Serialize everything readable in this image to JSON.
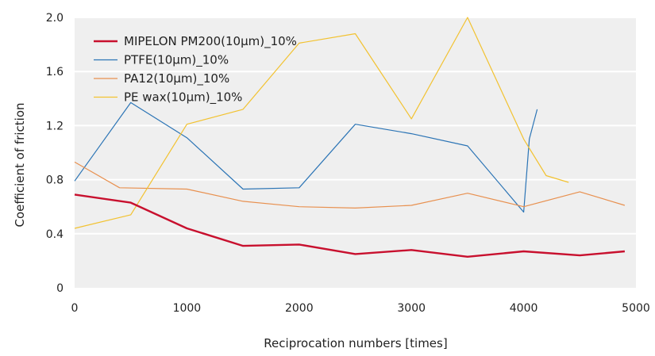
{
  "chart_data": {
    "type": "line",
    "title": "",
    "xlabel": "Reciprocation numbers [times]",
    "ylabel": "Coefficient of friction",
    "xlim": [
      0,
      5000
    ],
    "ylim": [
      0,
      2.0
    ],
    "xticks": [
      0,
      1000,
      2000,
      3000,
      4000,
      5000
    ],
    "xtick_labels": [
      "0",
      "1000",
      "2000",
      "3000",
      "4000",
      "5000"
    ],
    "yticks": [
      0,
      0.4,
      0.8,
      1.2,
      1.6,
      2.0
    ],
    "ytick_labels": [
      "0",
      "0.4",
      "0.8",
      "1.2",
      "1.6",
      "2.0"
    ],
    "grid": "horizontal",
    "legend_position": "top-left",
    "series": [
      {
        "name": "MIPELON PM200(10µm)_10%",
        "color": "#c8102e",
        "emphasis": true,
        "x": [
          0,
          500,
          1000,
          1500,
          2000,
          2500,
          3000,
          3500,
          4000,
          4500,
          4900
        ],
        "y": [
          0.69,
          0.63,
          0.44,
          0.31,
          0.32,
          0.25,
          0.28,
          0.23,
          0.27,
          0.24,
          0.27
        ]
      },
      {
        "name": "PTFE(10µm)_10%",
        "color": "#2b74b5",
        "emphasis": false,
        "x": [
          0,
          500,
          1000,
          1500,
          2000,
          2500,
          3000,
          3500,
          4000,
          4050,
          4120
        ],
        "y": [
          0.79,
          1.37,
          1.11,
          0.73,
          0.74,
          1.21,
          1.14,
          1.05,
          0.56,
          1.1,
          1.32
        ]
      },
      {
        "name": "PA12(10µm)_10%",
        "color": "#e8904f",
        "emphasis": false,
        "x": [
          0,
          400,
          1000,
          1500,
          2000,
          2500,
          3000,
          3500,
          4000,
          4500,
          4900
        ],
        "y": [
          0.93,
          0.74,
          0.73,
          0.64,
          0.6,
          0.59,
          0.61,
          0.7,
          0.6,
          0.71,
          0.61
        ]
      },
      {
        "name": "PE wax(10µm)_10%",
        "color": "#f2c230",
        "emphasis": false,
        "x": [
          0,
          500,
          1000,
          1500,
          2000,
          2500,
          3000,
          3500,
          4000,
          4200,
          4400
        ],
        "y": [
          0.44,
          0.54,
          1.21,
          1.32,
          1.81,
          1.88,
          1.25,
          2.0,
          1.1,
          0.83,
          0.78
        ]
      }
    ]
  }
}
